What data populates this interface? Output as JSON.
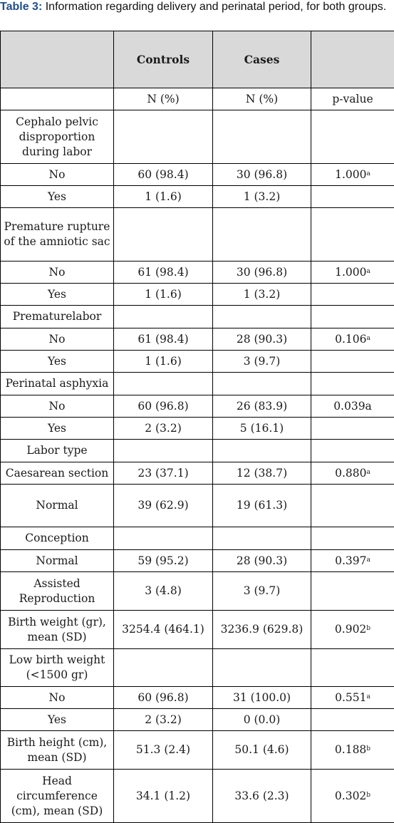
{
  "caption": {
    "lead": "Table 3:",
    "text": " Information regarding delivery and perinatal period, for both groups."
  },
  "header": {
    "col1": "",
    "col2": "Controls",
    "col3": "Cases",
    "col4": ""
  },
  "rows_1": [
    {
      "label": "",
      "controls": "N (%)",
      "cases": "N (%)",
      "p": "p-value",
      "sup": "",
      "h": 31
    },
    {
      "label": "Cephalo pelvic disproportion during labor",
      "controls": "",
      "cases": "",
      "p": "",
      "sup": "",
      "h": 75
    },
    {
      "label": "No",
      "controls": "60 (98.4)",
      "cases": "30 (96.8)",
      "p": "1.000",
      "sup": "a",
      "h": 31
    },
    {
      "label": "Yes",
      "controls": "1 (1.6)",
      "cases": "1 (3.2)",
      "p": "",
      "sup": "",
      "h": 31
    },
    {
      "label": "Premature rupture of the amniotic sac",
      "controls": "",
      "cases": "",
      "p": "",
      "sup": "",
      "h": 75
    },
    {
      "label": "No",
      "controls": "61 (98.4)",
      "cases": "30 (96.8)",
      "p": "1.000",
      "sup": "a",
      "h": 31
    },
    {
      "label": "Yes",
      "controls": "1 (1.6)",
      "cases": "1 (3.2)",
      "p": "",
      "sup": "",
      "h": 31
    },
    {
      "label": "Prematurelabor",
      "controls": "",
      "cases": "",
      "p": "",
      "sup": "",
      "h": 32
    },
    {
      "label": "No",
      "controls": "61 (98.4)",
      "cases": "28 (90.3)",
      "p": "0.106",
      "sup": "a",
      "h": 31
    },
    {
      "label": "Yes",
      "controls": "1 (1.6)",
      "cases": "3 (9.7)",
      "p": "",
      "sup": "",
      "h": 31
    },
    {
      "label": "Perinatal asphyxia",
      "controls": "",
      "cases": "",
      "p": "",
      "sup": "",
      "h": 32
    },
    {
      "label": "No",
      "controls": "60 (96.8)",
      "cases": "26 (83.9)",
      "p": "0.039a",
      "sup": "",
      "h": 31
    },
    {
      "label": "Yes",
      "controls": "2 (3.2)",
      "cases": "5 (16.1)",
      "p": "",
      "sup": "",
      "h": 31
    },
    {
      "label": "Labor type",
      "controls": "",
      "cases": "",
      "p": "",
      "sup": "",
      "h": 32
    },
    {
      "label": "Caesarean section",
      "controls": "23 (37.1)",
      "cases": "12 (38.7)",
      "p": "0.880",
      "sup": "a",
      "h": 31
    },
    {
      "label": "Normal",
      "controls": "39 (62.9)",
      "cases": "19 (61.3)",
      "p": "",
      "sup": "",
      "h": 60
    }
  ],
  "rows_2": [
    {
      "label": "Conception",
      "controls": "",
      "cases": "",
      "p": "",
      "sup": "",
      "h": 32
    },
    {
      "label": "Normal",
      "controls": "59 (95.2)",
      "cases": "28 (90.3)",
      "p": "0.397",
      "sup": "a",
      "h": 31
    },
    {
      "label": "Assisted Reproduction",
      "controls": "3 (4.8)",
      "cases": "3 (9.7)",
      "p": "",
      "sup": "",
      "h": 54
    },
    {
      "label": "Birth weight (gr), mean (SD)",
      "controls": "3254.4 (464.1)",
      "cases": "3236.9 (629.8)",
      "p": "0.902",
      "sup": "b",
      "h": 54
    },
    {
      "label": "Low birth weight (<1500 gr)",
      "controls": "",
      "cases": "",
      "p": "",
      "sup": "",
      "h": 53
    },
    {
      "label": "No",
      "controls": "60 (96.8)",
      "cases": "31 (100.0)",
      "p": "0.551",
      "sup": "a",
      "h": 31
    },
    {
      "label": "Yes",
      "controls": "2 (3.2)",
      "cases": "0 (0.0)",
      "p": "",
      "sup": "",
      "h": 31
    },
    {
      "label": "Birth height (cm), mean (SD)",
      "controls": "51.3 (2.4)",
      "cases": "50.1 (4.6)",
      "p": "0.188",
      "sup": "b",
      "h": 54
    },
    {
      "label": "Head circumference (cm), mean (SD)",
      "controls": "34.1 (1.2)",
      "cases": "33.6 (2.3)",
      "p": "0.302",
      "sup": "b",
      "h": 75
    }
  ]
}
